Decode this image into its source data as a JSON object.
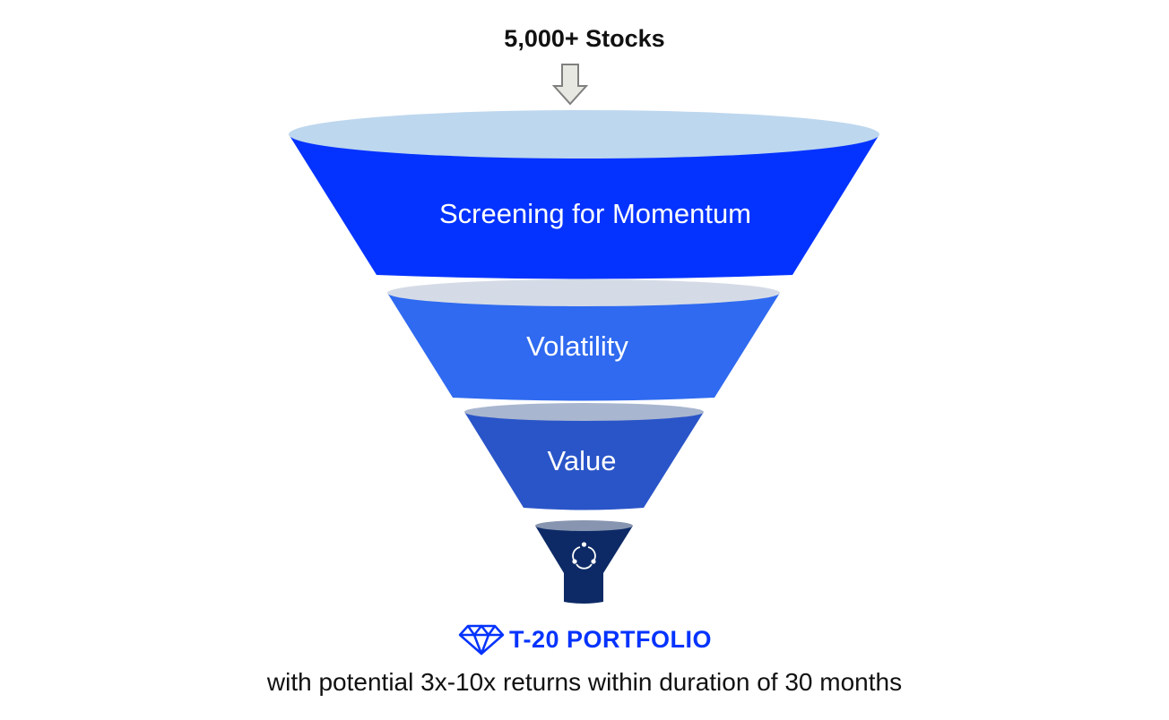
{
  "funnel": {
    "input_label": "5,000+ Stocks",
    "stages": [
      {
        "label": "Screening for Momentum",
        "color": "#0433ff",
        "rim_color": "#bdd7ee"
      },
      {
        "label": "Volatility",
        "color": "#2f6af0",
        "rim_color": "#d5dbe6"
      },
      {
        "label": "Value",
        "color": "#2a55c8",
        "rim_color": "#a9b6cf"
      },
      {
        "label": "",
        "color": "#0d2a66",
        "rim_color": "#8795b0",
        "icon": "cycle-icon"
      }
    ],
    "arrow_icon": "down-arrow-icon",
    "arrow_color": "#e8e8e2"
  },
  "output": {
    "icon": "diamond-icon",
    "title": "T-20 PORTFOLIO",
    "accent_color": "#0433ff",
    "caption": "with potential 3x-10x returns within duration of 30 months"
  }
}
